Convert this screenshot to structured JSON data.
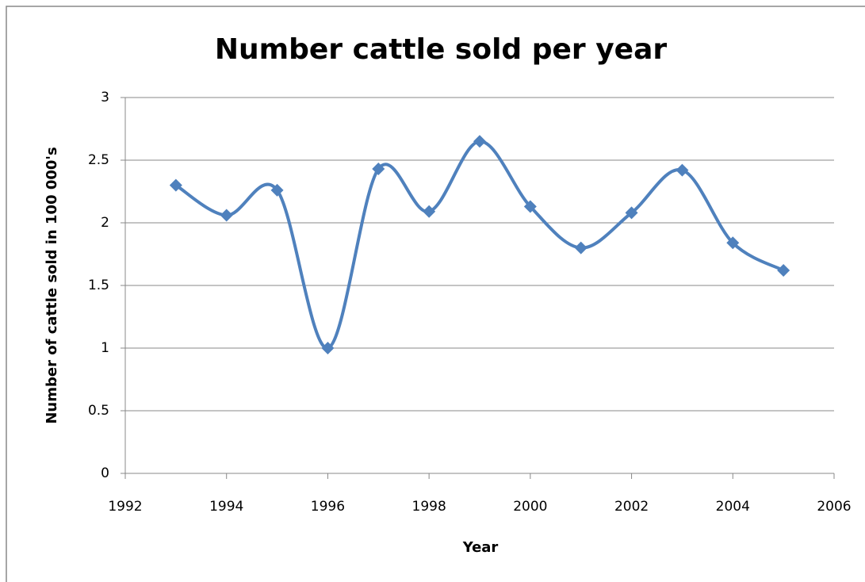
{
  "chart_data": {
    "type": "line",
    "title": "Number cattle sold per year",
    "x_label": "Year",
    "y_label": "Number of cattle sold in 100 000's",
    "x": [
      1993,
      1994,
      1995,
      1996,
      1997,
      1998,
      1999,
      2000,
      2001,
      2002,
      2003,
      2004,
      2005
    ],
    "values": [
      2.3,
      2.06,
      2.26,
      1.0,
      2.43,
      2.09,
      2.65,
      2.13,
      1.8,
      2.08,
      2.42,
      1.84,
      1.62
    ],
    "color": "#4f81bd",
    "xlim": [
      1992,
      2006
    ],
    "xticks": [
      1992,
      1994,
      1996,
      1998,
      2000,
      2002,
      2004,
      2006
    ],
    "ylim": [
      0,
      3
    ],
    "yticks": [
      0,
      0.5,
      1,
      1.5,
      2,
      2.5,
      3
    ],
    "grid": true,
    "smooth": true
  }
}
